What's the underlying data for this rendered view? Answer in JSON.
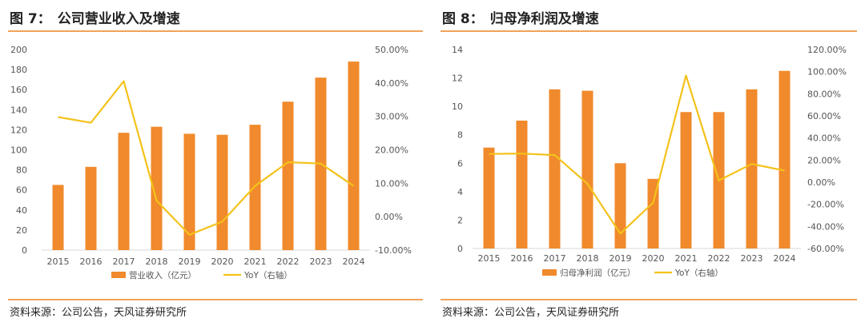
{
  "colors": {
    "bar": "#f08a2c",
    "line": "#f4c21a",
    "axis_text": "#555555",
    "rule": "#f0a35a"
  },
  "chart_data": [
    {
      "type": "bar",
      "title_prefix": "图 7：",
      "title": "公司营业收入及增速",
      "categories": [
        "2015",
        "2016",
        "2017",
        "2018",
        "2019",
        "2020",
        "2021",
        "2022",
        "2023",
        "2024"
      ],
      "series": [
        {
          "name": "营业收入（亿元）",
          "kind": "bar",
          "axis": "left",
          "values": [
            65,
            83,
            117,
            123,
            116,
            115,
            125,
            148,
            172,
            188
          ]
        },
        {
          "name": "YoY（右轴）",
          "kind": "line",
          "axis": "right",
          "values": [
            29.8,
            28.1,
            40.5,
            4.8,
            -5.4,
            -1.5,
            9.2,
            16.3,
            15.9,
            9.2
          ]
        }
      ],
      "ylim": [
        0,
        200
      ],
      "yticks": [
        "0",
        "20",
        "40",
        "60",
        "80",
        "100",
        "120",
        "140",
        "160",
        "180",
        "200"
      ],
      "y2lim": [
        -10,
        50
      ],
      "y2ticks": [
        "-10.00%",
        "0.00%",
        "10.00%",
        "20.00%",
        "30.00%",
        "40.00%",
        "50.00%"
      ],
      "legend_position": "bottom",
      "source": "资料来源：公司公告，天风证券研究所"
    },
    {
      "type": "bar",
      "title_prefix": "图 8：",
      "title": "归母净利润及增速",
      "categories": [
        "2015",
        "2016",
        "2017",
        "2018",
        "2019",
        "2020",
        "2021",
        "2022",
        "2023",
        "2024"
      ],
      "series": [
        {
          "name": "归母净利润（亿元）",
          "kind": "bar",
          "axis": "left",
          "values": [
            7.1,
            9.0,
            11.2,
            11.1,
            6.0,
            4.9,
            9.6,
            9.6,
            11.2,
            12.5
          ]
        },
        {
          "name": "YoY（右轴）",
          "kind": "line",
          "axis": "right",
          "values": [
            25.5,
            25.9,
            24.5,
            -1.5,
            -46.5,
            -18.5,
            96.5,
            1.5,
            16.5,
            10.5
          ]
        }
      ],
      "ylim": [
        0,
        14
      ],
      "yticks": [
        "0",
        "2",
        "4",
        "6",
        "8",
        "10",
        "12",
        "14"
      ],
      "y2lim": [
        -60,
        120
      ],
      "y2ticks": [
        "-60.00%",
        "-40.00%",
        "-20.00%",
        "0.00%",
        "20.00%",
        "40.00%",
        "60.00%",
        "80.00%",
        "100.00%",
        "120.00%"
      ],
      "legend_position": "bottom",
      "source": "资料来源：公司公告，天风证券研究所"
    }
  ]
}
